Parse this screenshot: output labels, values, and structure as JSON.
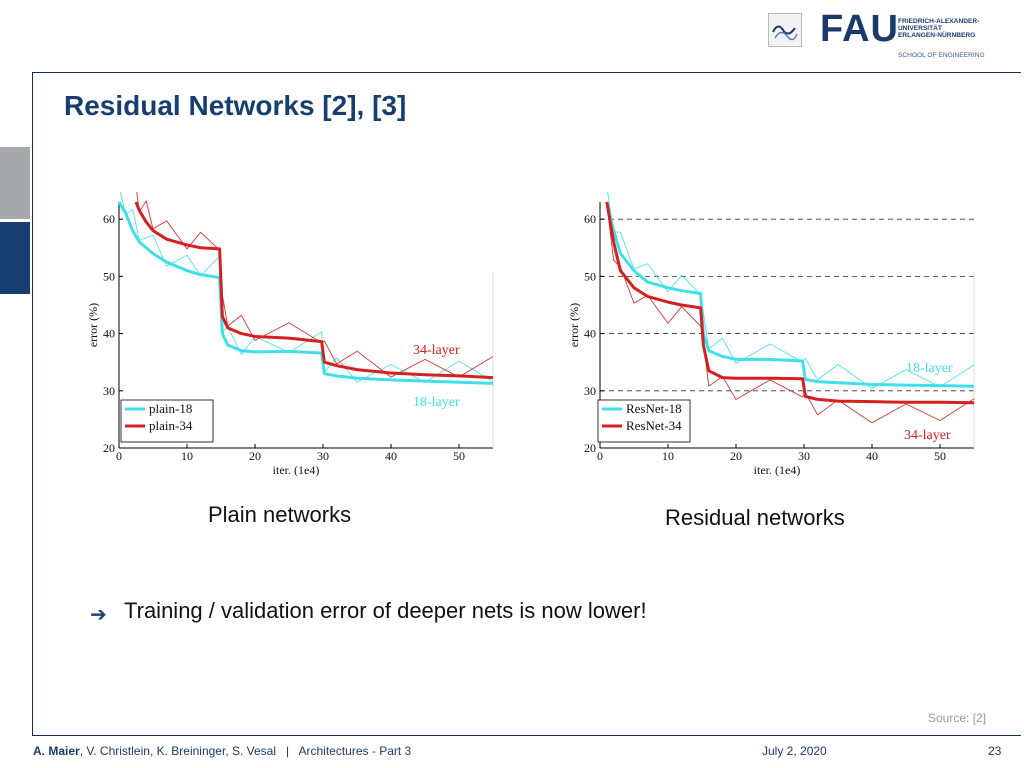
{
  "header": {
    "logo_word": "FAU",
    "university_lines": [
      "FRIEDRICH-ALEXANDER-",
      "UNIVERSITÄT",
      "ERLANGEN-NÜRNBERG"
    ],
    "school": "SCHOOL OF ENGINEERING"
  },
  "slide": {
    "title": "Residual Networks [2], [3]",
    "caption_left": "Plain networks",
    "caption_right": "Residual networks",
    "bullet": "Training / validation error of deeper nets is now lower!",
    "source": "Source: [2]"
  },
  "footer": {
    "authors_bold": "A. Maier",
    "authors_rest": ", V. Christlein, K. Breininger, S. Vesal",
    "separator": "|",
    "course": "Architectures - Part 3",
    "date": "July 2, 2020",
    "page": "23"
  },
  "colors": {
    "cyan": "#3fe0ea",
    "red": "#d42020",
    "brand": "#173e6e"
  },
  "chart_data": [
    {
      "type": "line",
      "xlabel": "iter. (1e4)",
      "ylabel": "error (%)",
      "xlim": [
        0,
        55
      ],
      "ylim": [
        20,
        63
      ],
      "xticks": [
        0,
        10,
        20,
        30,
        40,
        50
      ],
      "yticks": [
        20,
        30,
        40,
        50,
        60
      ],
      "grid": false,
      "legend": "bottom-left",
      "series": [
        {
          "name": "plain-18",
          "color": "#3fe0ea",
          "x": [
            0,
            1,
            2,
            3,
            5,
            7,
            10,
            12,
            14.8,
            15.2,
            16,
            18,
            20,
            25,
            29.8,
            30.2,
            32,
            35,
            40,
            45,
            50,
            55
          ],
          "y": [
            63,
            61,
            58,
            56,
            54,
            52.5,
            51,
            50.3,
            49.8,
            40,
            38,
            37,
            36.8,
            36.9,
            36.6,
            33,
            32.6,
            32.2,
            31.9,
            31.7,
            31.5,
            31.3
          ]
        },
        {
          "name": "plain-34",
          "color": "#d42020",
          "x": [
            2.5,
            3,
            4,
            5,
            7,
            10,
            12,
            14.8,
            15.2,
            16,
            18,
            20,
            25,
            29.8,
            30.2,
            32,
            35,
            40,
            45,
            50,
            55
          ],
          "y": [
            63,
            61.5,
            59.5,
            58,
            56.5,
            55.5,
            55,
            54.8,
            43,
            41,
            40,
            39.5,
            39.2,
            38.6,
            35,
            34.4,
            33.7,
            33.1,
            32.8,
            32.6,
            32.3
          ]
        }
      ],
      "annotations": [
        "34-layer",
        "18-layer"
      ]
    },
    {
      "type": "line",
      "xlabel": "iter. (1e4)",
      "ylabel": "error (%)",
      "xlim": [
        0,
        55
      ],
      "ylim": [
        20,
        63
      ],
      "xticks": [
        0,
        10,
        20,
        30,
        40,
        50
      ],
      "yticks": [
        20,
        30,
        40,
        50,
        60
      ],
      "grid": true,
      "legend": "bottom-left",
      "series": [
        {
          "name": "ResNet-18",
          "color": "#3fe0ea",
          "x": [
            1,
            2,
            3,
            5,
            7,
            10,
            12,
            14.8,
            15.2,
            16,
            18,
            20,
            25,
            29.8,
            30.2,
            32,
            35,
            40,
            45,
            50,
            55
          ],
          "y": [
            63,
            58,
            54,
            51,
            49,
            48,
            47.5,
            47,
            40,
            37,
            36,
            35.5,
            35.5,
            35.2,
            32,
            31.6,
            31.4,
            31.1,
            31,
            30.9,
            30.8
          ]
        },
        {
          "name": "ResNet-34",
          "color": "#d42020",
          "x": [
            1,
            2,
            3,
            5,
            7,
            10,
            12,
            14.8,
            15.2,
            16,
            18,
            20,
            25,
            29.8,
            30.2,
            32,
            35,
            40,
            45,
            50,
            55
          ],
          "y": [
            63,
            56,
            51,
            48,
            46.5,
            45.5,
            45,
            44.5,
            38,
            33.5,
            32.3,
            32.2,
            32.2,
            32.1,
            29,
            28.5,
            28.2,
            28.1,
            28,
            28,
            27.9
          ]
        }
      ],
      "annotations": [
        "18-layer",
        "34-layer"
      ]
    }
  ]
}
